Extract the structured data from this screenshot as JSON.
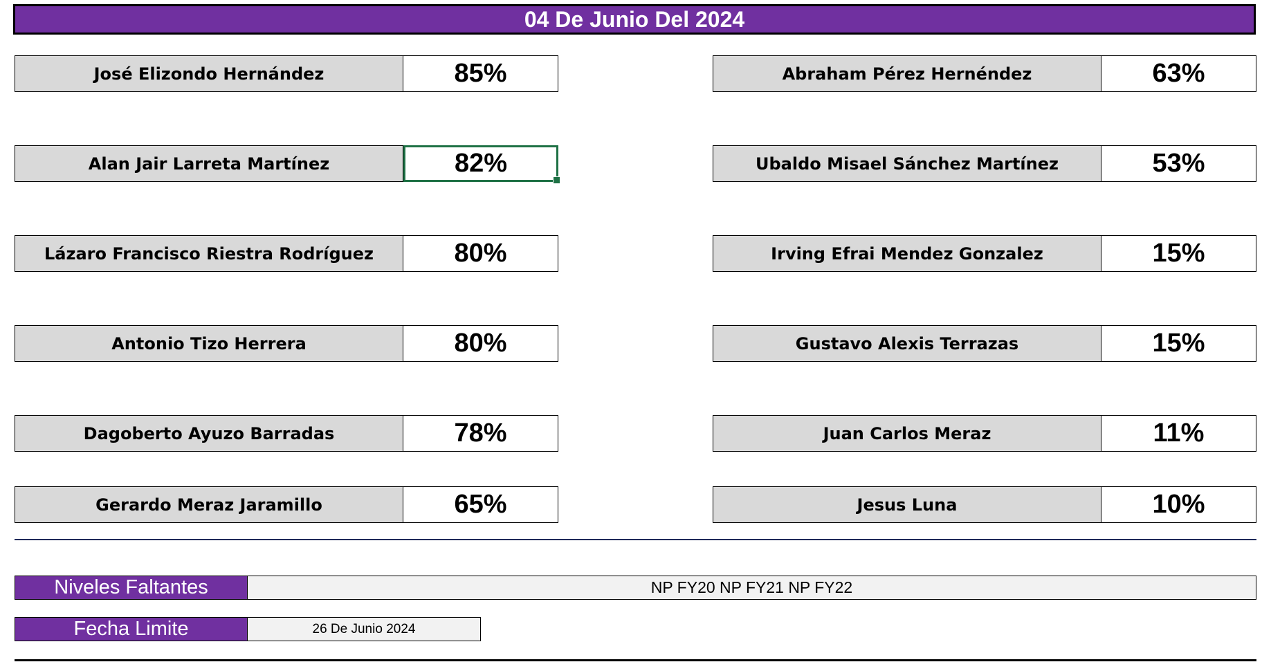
{
  "header": {
    "title": "04 De Junio Del 2024",
    "background_color": "#7030a0",
    "text_color": "#ffffff"
  },
  "left_column": [
    {
      "name": "José Elizondo Hernández",
      "value": "85%"
    },
    {
      "name": "Alan Jair Larreta Martínez",
      "value": "82%"
    },
    {
      "name": "Lázaro Francisco Riestra Rodríguez",
      "value": "80%"
    },
    {
      "name": "Antonio Tizo Herrera",
      "value": "80%"
    },
    {
      "name": "Dagoberto Ayuzo Barradas",
      "value": "78%"
    },
    {
      "name": "Gerardo Meraz Jaramillo",
      "value": "65%"
    }
  ],
  "right_column": [
    {
      "name": "Abraham Pérez Hernéndez",
      "value": "63%"
    },
    {
      "name": "Ubaldo Misael Sánchez Martínez",
      "value": "53%"
    },
    {
      "name": "Irving Efrai Mendez Gonzalez",
      "value": "15%"
    },
    {
      "name": "Gustavo Alexis Terrazas",
      "value": "15%"
    },
    {
      "name": "Juan Carlos Meraz",
      "value": "11%"
    },
    {
      "name": "Jesus Luna",
      "value": "10%"
    }
  ],
  "selected_cell_color": "#1e7145",
  "name_cell_color": "#d9d9d9",
  "niveles": {
    "label": "Niveles Faltantes",
    "value": "NP FY20 NP FY21 NP FY22"
  },
  "fecha": {
    "label": "Fecha Limite",
    "value": "26 De Junio 2024"
  }
}
